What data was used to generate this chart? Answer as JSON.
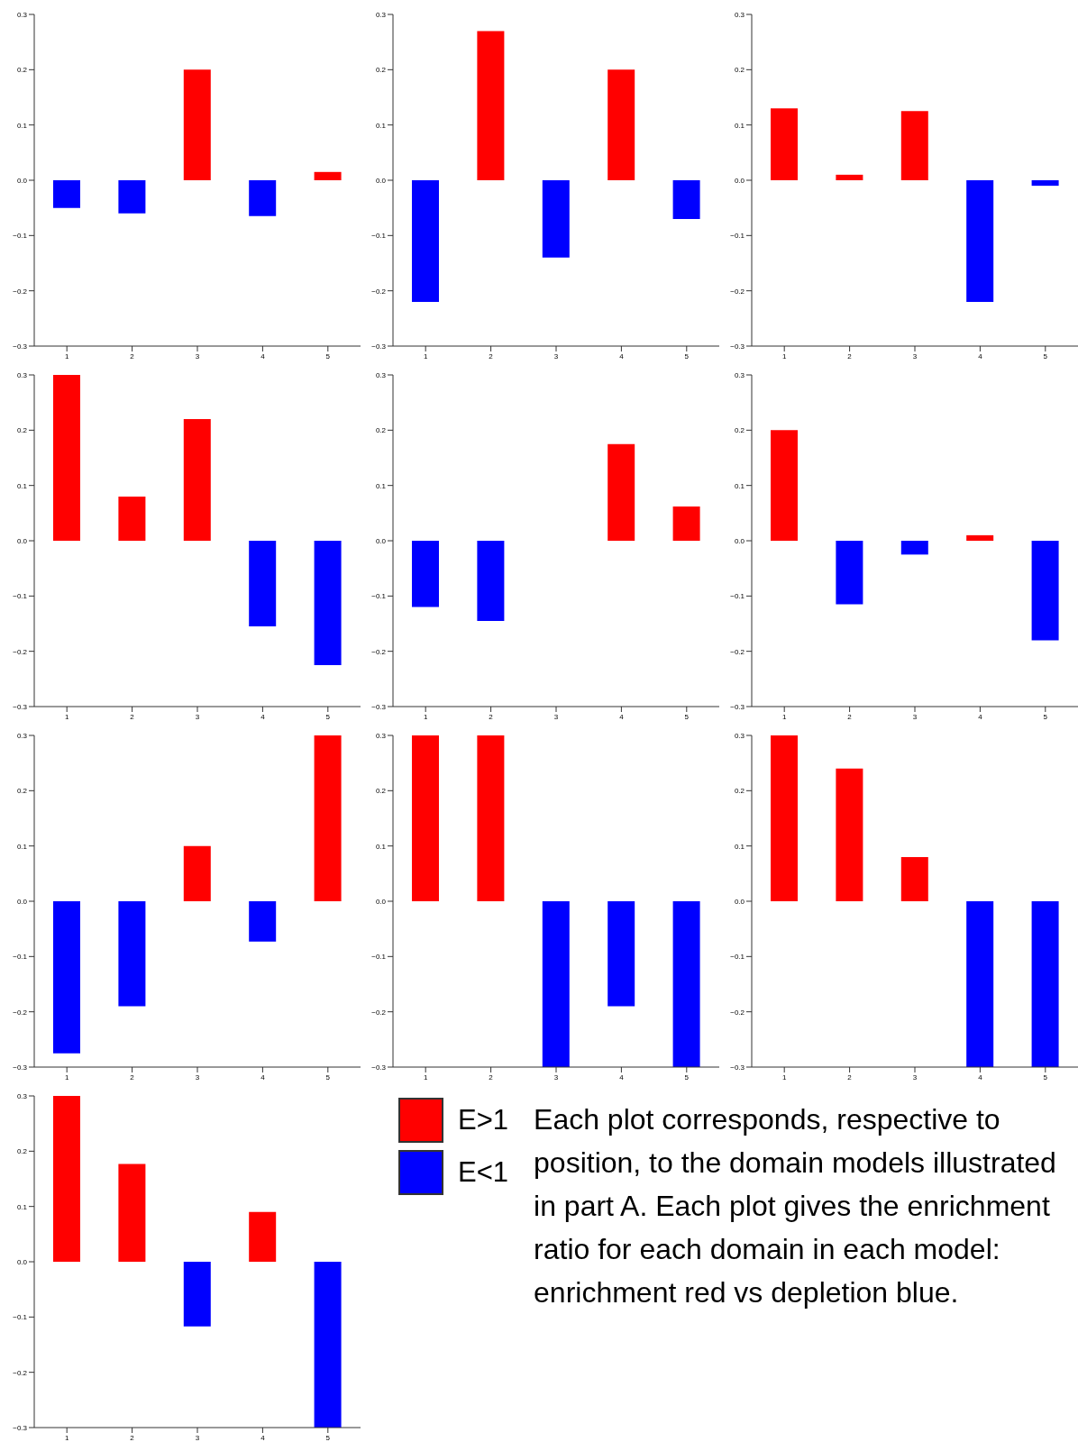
{
  "chart_data": [
    {
      "type": "bar",
      "stacked": true,
      "categories": [
        "1",
        "2",
        "3",
        "4",
        "5"
      ],
      "series": [
        {
          "color": "#ff0000",
          "values": [
            null,
            null,
            0.2,
            null,
            0.015
          ]
        },
        {
          "color": "#0000ff",
          "values": [
            -0.05,
            -0.06,
            null,
            -0.065,
            null
          ]
        }
      ],
      "ylim": [
        -0.3,
        0.3
      ],
      "yticks": [
        {
          "value": -0.3,
          "label": "−0.3"
        },
        {
          "value": -0.2,
          "label": "−0.2"
        },
        {
          "value": -0.1,
          "label": "−0.1"
        },
        {
          "value": 0,
          "label": "0.0"
        },
        {
          "value": 0.1,
          "label": "0.1"
        },
        {
          "value": 0.2,
          "label": "0.2"
        },
        {
          "value": 0.3,
          "label": "0.3"
        }
      ]
    },
    {
      "type": "bar",
      "stacked": true,
      "categories": [
        "1",
        "2",
        "3",
        "4",
        "5"
      ],
      "series": [
        {
          "color": "#ff0000",
          "values": [
            null,
            0.27,
            null,
            0.2,
            null
          ]
        },
        {
          "color": "#0000ff",
          "values": [
            -0.22,
            null,
            -0.14,
            null,
            -0.07
          ]
        }
      ],
      "ylim": [
        -0.3,
        0.3
      ],
      "yticks": [
        {
          "value": -0.3,
          "label": "−0.3"
        },
        {
          "value": -0.2,
          "label": "−0.2"
        },
        {
          "value": -0.1,
          "label": "−0.1"
        },
        {
          "value": 0,
          "label": "0.0"
        },
        {
          "value": 0.1,
          "label": "0.1"
        },
        {
          "value": 0.2,
          "label": "0.2"
        },
        {
          "value": 0.3,
          "label": "0.3"
        }
      ]
    },
    {
      "type": "bar",
      "stacked": true,
      "categories": [
        "1",
        "2",
        "3",
        "4",
        "5"
      ],
      "series": [
        {
          "color": "#ff0000",
          "values": [
            0.13,
            0.01,
            0.125,
            null,
            null
          ]
        },
        {
          "color": "#0000ff",
          "values": [
            null,
            null,
            null,
            -0.22,
            -0.01
          ]
        }
      ],
      "ylim": [
        -0.3,
        0.3
      ],
      "yticks": [
        {
          "value": -0.3,
          "label": "−0.3"
        },
        {
          "value": -0.2,
          "label": "−0.2"
        },
        {
          "value": -0.1,
          "label": "−0.1"
        },
        {
          "value": 0,
          "label": "0.0"
        },
        {
          "value": 0.1,
          "label": "0.1"
        },
        {
          "value": 0.2,
          "label": "0.2"
        },
        {
          "value": 0.3,
          "label": "0.3"
        }
      ]
    },
    {
      "type": "bar",
      "stacked": true,
      "categories": [
        "1",
        "2",
        "3",
        "4",
        "5"
      ],
      "series": [
        {
          "color": "#ff0000",
          "values": [
            0.3,
            0.08,
            0.22,
            null,
            null
          ]
        },
        {
          "color": "#0000ff",
          "values": [
            null,
            null,
            null,
            -0.155,
            -0.225
          ]
        }
      ],
      "ylim": [
        -0.3,
        0.3
      ],
      "yticks": [
        {
          "value": -0.3,
          "label": "−0.3"
        },
        {
          "value": -0.2,
          "label": "−0.2"
        },
        {
          "value": -0.1,
          "label": "−0.1"
        },
        {
          "value": 0,
          "label": "0.0"
        },
        {
          "value": 0.1,
          "label": "0.1"
        },
        {
          "value": 0.2,
          "label": "0.2"
        },
        {
          "value": 0.3,
          "label": "0.3"
        }
      ]
    },
    {
      "type": "bar",
      "stacked": true,
      "categories": [
        "1",
        "2",
        "3",
        "4",
        "5"
      ],
      "series": [
        {
          "color": "#ff0000",
          "values": [
            null,
            null,
            0,
            0.175,
            0.062
          ]
        },
        {
          "color": "#0000ff",
          "values": [
            -0.12,
            -0.145,
            null,
            null,
            null
          ]
        }
      ],
      "ylim": [
        -0.3,
        0.3
      ],
      "yticks": [
        {
          "value": -0.3,
          "label": "−0.3"
        },
        {
          "value": -0.2,
          "label": "−0.2"
        },
        {
          "value": -0.1,
          "label": "−0.1"
        },
        {
          "value": 0,
          "label": "0.0"
        },
        {
          "value": 0.1,
          "label": "0.1"
        },
        {
          "value": 0.2,
          "label": "0.2"
        },
        {
          "value": 0.3,
          "label": "0.3"
        }
      ]
    },
    {
      "type": "bar",
      "stacked": true,
      "categories": [
        "1",
        "2",
        "3",
        "4",
        "5"
      ],
      "series": [
        {
          "color": "#ff0000",
          "values": [
            0.2,
            null,
            null,
            0.01,
            null
          ]
        },
        {
          "color": "#0000ff",
          "values": [
            null,
            -0.115,
            -0.025,
            null,
            -0.18
          ]
        }
      ],
      "ylim": [
        -0.3,
        0.3
      ],
      "yticks": [
        {
          "value": -0.3,
          "label": "−0.3"
        },
        {
          "value": -0.2,
          "label": "−0.2"
        },
        {
          "value": -0.1,
          "label": "−0.1"
        },
        {
          "value": 0,
          "label": "0.0"
        },
        {
          "value": 0.1,
          "label": "0.1"
        },
        {
          "value": 0.2,
          "label": "0.2"
        },
        {
          "value": 0.3,
          "label": "0.3"
        }
      ]
    },
    {
      "type": "bar",
      "stacked": true,
      "categories": [
        "1",
        "2",
        "3",
        "4",
        "5"
      ],
      "series": [
        {
          "color": "#ff0000",
          "values": [
            null,
            null,
            0.1,
            null,
            0.3
          ]
        },
        {
          "color": "#0000ff",
          "values": [
            -0.275,
            -0.19,
            null,
            -0.073,
            null
          ]
        }
      ],
      "ylim": [
        -0.3,
        0.3
      ],
      "yticks": [
        {
          "value": -0.3,
          "label": "−0.3"
        },
        {
          "value": -0.2,
          "label": "−0.2"
        },
        {
          "value": -0.1,
          "label": "−0.1"
        },
        {
          "value": 0,
          "label": "0.0"
        },
        {
          "value": 0.1,
          "label": "0.1"
        },
        {
          "value": 0.2,
          "label": "0.2"
        },
        {
          "value": 0.3,
          "label": "0.3"
        }
      ]
    },
    {
      "type": "bar",
      "stacked": true,
      "categories": [
        "1",
        "2",
        "3",
        "4",
        "5"
      ],
      "series": [
        {
          "color": "#ff0000",
          "values": [
            0.3,
            0.3,
            null,
            null,
            null
          ]
        },
        {
          "color": "#0000ff",
          "values": [
            null,
            null,
            -0.3,
            -0.19,
            -0.3
          ]
        }
      ],
      "ylim": [
        -0.3,
        0.3
      ],
      "yticks": [
        {
          "value": -0.3,
          "label": "−0.3"
        },
        {
          "value": -0.2,
          "label": "−0.2"
        },
        {
          "value": -0.1,
          "label": "−0.1"
        },
        {
          "value": 0,
          "label": "0.0"
        },
        {
          "value": 0.1,
          "label": "0.1"
        },
        {
          "value": 0.2,
          "label": "0.2"
        },
        {
          "value": 0.3,
          "label": "0.3"
        }
      ]
    },
    {
      "type": "bar",
      "stacked": true,
      "categories": [
        "1",
        "2",
        "3",
        "4",
        "5"
      ],
      "series": [
        {
          "color": "#ff0000",
          "values": [
            0.3,
            0.24,
            0.08,
            null,
            null
          ]
        },
        {
          "color": "#0000ff",
          "values": [
            null,
            null,
            null,
            -0.3,
            -0.3
          ]
        }
      ],
      "ylim": [
        -0.3,
        0.3
      ],
      "yticks": [
        {
          "value": -0.3,
          "label": "−0.3"
        },
        {
          "value": -0.2,
          "label": "−0.2"
        },
        {
          "value": -0.1,
          "label": "−0.1"
        },
        {
          "value": 0,
          "label": "0.0"
        },
        {
          "value": 0.1,
          "label": "0.1"
        },
        {
          "value": 0.2,
          "label": "0.2"
        },
        {
          "value": 0.3,
          "label": "0.3"
        }
      ]
    },
    {
      "type": "bar",
      "stacked": true,
      "categories": [
        "1",
        "2",
        "3",
        "4",
        "5"
      ],
      "series": [
        {
          "name": "E>1",
          "color": "#ff0000",
          "values": [
            0.3,
            0.177,
            null,
            0.09,
            null
          ]
        },
        {
          "name": "E<1",
          "color": "#0000ff",
          "values": [
            null,
            null,
            -0.117,
            null,
            -0.3
          ]
        }
      ],
      "ylim": [
        -0.3,
        0.3
      ],
      "yticks": [
        {
          "value": -0.3,
          "label": "−0.3"
        },
        {
          "value": -0.2,
          "label": "−0.2"
        },
        {
          "value": -0.1,
          "label": "−0.1"
        },
        {
          "value": 0,
          "label": "0.0"
        },
        {
          "value": 0.1,
          "label": "0.1"
        },
        {
          "value": 0.2,
          "label": "0.2"
        },
        {
          "value": 0.3,
          "label": "0.3"
        }
      ],
      "legend": "right",
      "annotations": [
        "Each plot corresponds, respective to position, to the domain models illustrated in part A. Each plot gives the enrichment ratio for each domain in each model: enrichment red vs depletion blue."
      ]
    }
  ]
}
